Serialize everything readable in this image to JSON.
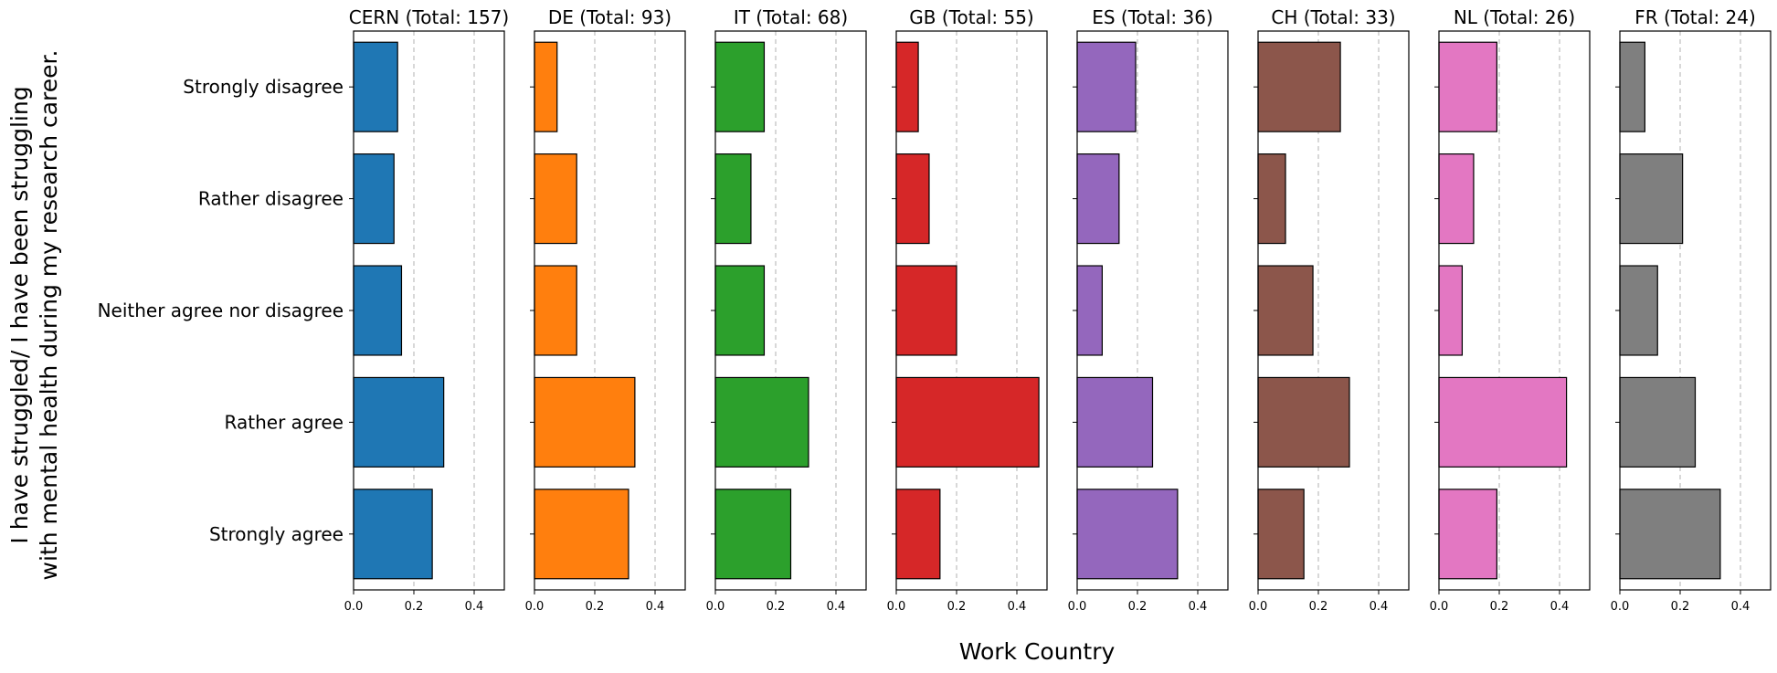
{
  "chart_data": {
    "type": "bar",
    "orientation": "horizontal",
    "ylabel_lines": [
      "I have struggled/ I have been struggling",
      "with mental health during my research career."
    ],
    "xlabel": "Work Country",
    "categories": [
      "Strongly disagree",
      "Rather disagree",
      "Neither agree nor disagree",
      "Rather agree",
      "Strongly agree"
    ],
    "xlim": [
      0,
      0.5
    ],
    "xticks": [
      0.0,
      0.2,
      0.4
    ],
    "xtick_labels": [
      "0.0",
      "0.2",
      "0.4"
    ],
    "grid": "x-dashed",
    "panels": [
      {
        "country": "CERN",
        "title": "CERN (Total: 157)",
        "color": "#1f77b4",
        "values": [
          0.146,
          0.134,
          0.159,
          0.299,
          0.261
        ]
      },
      {
        "country": "DE",
        "title": "DE (Total: 93)",
        "color": "#ff7f0e",
        "values": [
          0.075,
          0.14,
          0.14,
          0.333,
          0.312
        ]
      },
      {
        "country": "IT",
        "title": "IT (Total: 68)",
        "color": "#2ca02c",
        "values": [
          0.162,
          0.118,
          0.162,
          0.309,
          0.25
        ]
      },
      {
        "country": "GB",
        "title": "GB (Total: 55)",
        "color": "#d62728",
        "values": [
          0.073,
          0.109,
          0.2,
          0.473,
          0.145
        ]
      },
      {
        "country": "ES",
        "title": "ES (Total: 36)",
        "color": "#9467bd",
        "values": [
          0.194,
          0.139,
          0.083,
          0.25,
          0.333
        ]
      },
      {
        "country": "CH",
        "title": "CH (Total: 33)",
        "color": "#8c564b",
        "values": [
          0.273,
          0.091,
          0.182,
          0.303,
          0.152
        ]
      },
      {
        "country": "NL",
        "title": "NL (Total: 26)",
        "color": "#e377c2",
        "values": [
          0.192,
          0.115,
          0.077,
          0.423,
          0.192
        ]
      },
      {
        "country": "FR",
        "title": "FR (Total: 24)",
        "color": "#7f7f7f",
        "values": [
          0.083,
          0.208,
          0.125,
          0.25,
          0.333
        ]
      }
    ]
  }
}
